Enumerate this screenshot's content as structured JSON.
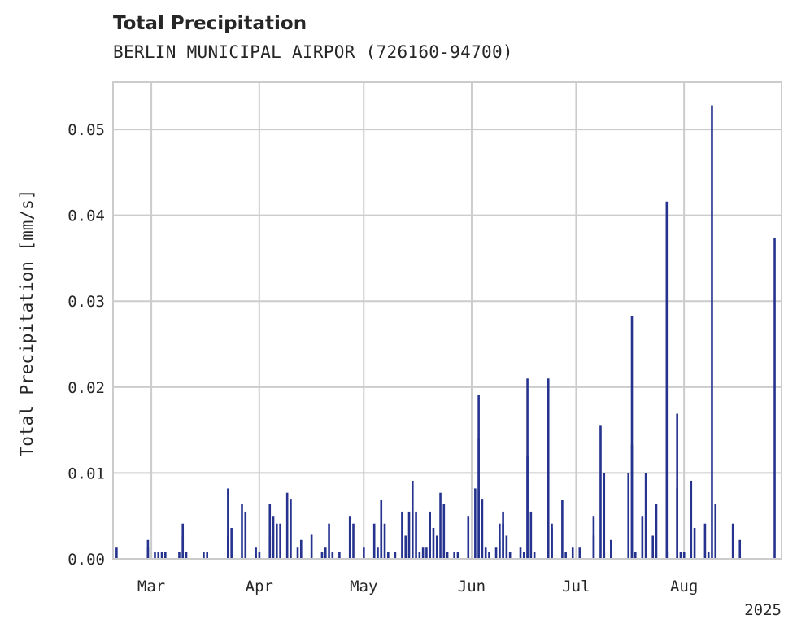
{
  "title": "Total Precipitation",
  "subtitle": "BERLIN MUNICIPAL AIRPOR (726160-94700)",
  "colors": {
    "bar": "#25338f",
    "grid": "#cccccc",
    "frame": "#cccccc",
    "text": "#262626"
  },
  "chart_data": {
    "type": "bar",
    "ylabel": "Total Precipitation [mm/s]",
    "xlabel": "",
    "x_offset_label": "2025",
    "ylim": [
      0,
      0.0555
    ],
    "xlim": [
      "2025-02-18",
      "2025-08-29"
    ],
    "grid": true,
    "y_ticks": [
      {
        "value": 0.0,
        "label": "0.00"
      },
      {
        "value": 0.01,
        "label": "0.01"
      },
      {
        "value": 0.02,
        "label": "0.02"
      },
      {
        "value": 0.03,
        "label": "0.03"
      },
      {
        "value": 0.04,
        "label": "0.04"
      },
      {
        "value": 0.05,
        "label": "0.05"
      }
    ],
    "x_ticks": [
      {
        "date": "2025-03-01",
        "label": "Mar"
      },
      {
        "date": "2025-04-01",
        "label": "Apr"
      },
      {
        "date": "2025-05-01",
        "label": "May"
      },
      {
        "date": "2025-06-01",
        "label": "Jun"
      },
      {
        "date": "2025-07-01",
        "label": "Jul"
      },
      {
        "date": "2025-08-01",
        "label": "Aug"
      }
    ],
    "series": [
      {
        "points": [
          [
            "2025-02-19",
            0.0014
          ],
          [
            "2025-02-28",
            0.0014
          ],
          [
            "2025-02-28",
            0.0022
          ],
          [
            "2025-03-02",
            0.0008
          ],
          [
            "2025-03-03",
            0.0008
          ],
          [
            "2025-03-04",
            0.0008
          ],
          [
            "2025-03-05",
            0.0008
          ],
          [
            "2025-03-09",
            0.0008
          ],
          [
            "2025-03-10",
            0.0027
          ],
          [
            "2025-03-10",
            0.0041
          ],
          [
            "2025-03-11",
            0.0008
          ],
          [
            "2025-03-16",
            0.0008
          ],
          [
            "2025-03-17",
            0.0008
          ],
          [
            "2025-03-23",
            0.0027
          ],
          [
            "2025-03-23",
            0.0082
          ],
          [
            "2025-03-24",
            0.0036
          ],
          [
            "2025-03-27",
            0.0064
          ],
          [
            "2025-03-28",
            0.0055
          ],
          [
            "2025-03-31",
            0.0014
          ],
          [
            "2025-04-01",
            0.0008
          ],
          [
            "2025-04-04",
            0.0027
          ],
          [
            "2025-04-04",
            0.0064
          ],
          [
            "2025-04-05",
            0.005
          ],
          [
            "2025-04-06",
            0.0041
          ],
          [
            "2025-04-07",
            0.0041
          ],
          [
            "2025-04-09",
            0.0077
          ],
          [
            "2025-04-10",
            0.007
          ],
          [
            "2025-04-12",
            0.0014
          ],
          [
            "2025-04-13",
            0.0022
          ],
          [
            "2025-04-16",
            0.0028
          ],
          [
            "2025-04-19",
            0.0008
          ],
          [
            "2025-04-20",
            0.0014
          ],
          [
            "2025-04-21",
            0.0041
          ],
          [
            "2025-04-22",
            0.0008
          ],
          [
            "2025-04-24",
            0.0008
          ],
          [
            "2025-04-27",
            0.005
          ],
          [
            "2025-04-28",
            0.0041
          ],
          [
            "2025-05-01",
            0.0014
          ],
          [
            "2025-05-04",
            0.0041
          ],
          [
            "2025-05-05",
            0.0014
          ],
          [
            "2025-05-06",
            0.0041
          ],
          [
            "2025-05-06",
            0.0069
          ],
          [
            "2025-05-07",
            0.0041
          ],
          [
            "2025-05-08",
            0.0008
          ],
          [
            "2025-05-10",
            0.0008
          ],
          [
            "2025-05-12",
            0.0055
          ],
          [
            "2025-05-13",
            0.0027
          ],
          [
            "2025-05-14",
            0.0055
          ],
          [
            "2025-05-15",
            0.0091
          ],
          [
            "2025-05-16",
            0.0055
          ],
          [
            "2025-05-17",
            0.0008
          ],
          [
            "2025-05-18",
            0.0014
          ],
          [
            "2025-05-19",
            0.0014
          ],
          [
            "2025-05-20",
            0.0055
          ],
          [
            "2025-05-21",
            0.0036
          ],
          [
            "2025-05-22",
            0.0027
          ],
          [
            "2025-05-23",
            0.0077
          ],
          [
            "2025-05-24",
            0.0064
          ],
          [
            "2025-05-25",
            0.0008
          ],
          [
            "2025-05-27",
            0.0008
          ],
          [
            "2025-05-28",
            0.0008
          ],
          [
            "2025-05-31",
            0.005
          ],
          [
            "2025-06-02",
            0.0082
          ],
          [
            "2025-06-03",
            0.014
          ],
          [
            "2025-06-03",
            0.0191
          ],
          [
            "2025-06-04",
            0.007
          ],
          [
            "2025-06-05",
            0.0014
          ],
          [
            "2025-06-06",
            0.0008
          ],
          [
            "2025-06-08",
            0.0014
          ],
          [
            "2025-06-09",
            0.0022
          ],
          [
            "2025-06-09",
            0.0041
          ],
          [
            "2025-06-10",
            0.0055
          ],
          [
            "2025-06-10",
            0.0041
          ],
          [
            "2025-06-11",
            0.0027
          ],
          [
            "2025-06-12",
            0.0008
          ],
          [
            "2025-06-15",
            0.0014
          ],
          [
            "2025-06-16",
            0.0008
          ],
          [
            "2025-06-17",
            0.012
          ],
          [
            "2025-06-17",
            0.021
          ],
          [
            "2025-06-18",
            0.0055
          ],
          [
            "2025-06-19",
            0.0008
          ],
          [
            "2025-06-23",
            0.021
          ],
          [
            "2025-06-24",
            0.0041
          ],
          [
            "2025-06-24",
            0.0036
          ],
          [
            "2025-06-27",
            0.0069
          ],
          [
            "2025-06-28",
            0.0008
          ],
          [
            "2025-06-30",
            0.0014
          ],
          [
            "2025-07-02",
            0.0014
          ],
          [
            "2025-07-06",
            0.0027
          ],
          [
            "2025-07-06",
            0.005
          ],
          [
            "2025-07-08",
            0.0155
          ],
          [
            "2025-07-09",
            0.01
          ],
          [
            "2025-07-09",
            0.0008
          ],
          [
            "2025-07-11",
            0.0022
          ],
          [
            "2025-07-16",
            0.01
          ],
          [
            "2025-07-17",
            0.0133
          ],
          [
            "2025-07-17",
            0.0283
          ],
          [
            "2025-07-18",
            0.0008
          ],
          [
            "2025-07-20",
            0.005
          ],
          [
            "2025-07-21",
            0.01
          ],
          [
            "2025-07-23",
            0.0027
          ],
          [
            "2025-07-24",
            0.0064
          ],
          [
            "2025-07-27",
            0.0008
          ],
          [
            "2025-07-27",
            0.0416
          ],
          [
            "2025-07-30",
            0.0169
          ],
          [
            "2025-07-30",
            0.0082
          ],
          [
            "2025-07-31",
            0.0008
          ],
          [
            "2025-08-01",
            0.0008
          ],
          [
            "2025-08-03",
            0.0091
          ],
          [
            "2025-08-04",
            0.0036
          ],
          [
            "2025-08-07",
            0.0041
          ],
          [
            "2025-08-08",
            0.0008
          ],
          [
            "2025-08-09",
            0.0528
          ],
          [
            "2025-08-10",
            0.0064
          ],
          [
            "2025-08-15",
            0.0041
          ],
          [
            "2025-08-17",
            0.0022
          ],
          [
            "2025-08-27",
            0.0374
          ]
        ]
      }
    ]
  }
}
